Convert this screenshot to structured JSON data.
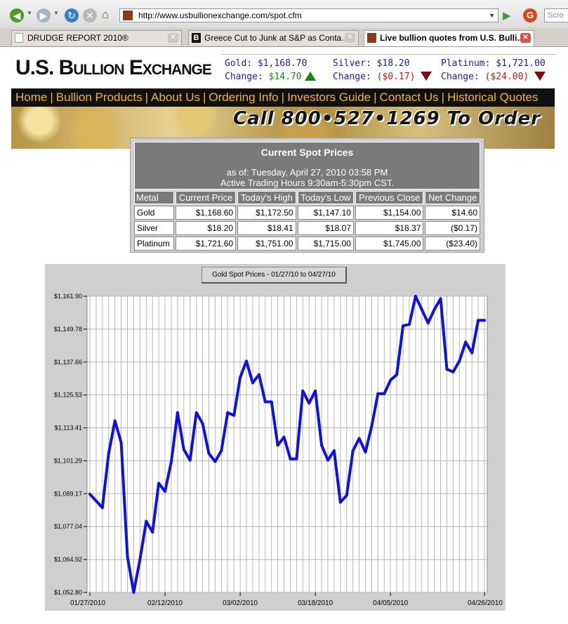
{
  "browser": {
    "url": "http://www.usbullionexchange.com/spot.cfm",
    "search_placeholder": "Scro",
    "tabs": [
      {
        "label": "DRUDGE REPORT 2010®",
        "active": false
      },
      {
        "label": "Greece Cut to Junk at S&P as Conta...",
        "active": false
      },
      {
        "label": "Live bullion quotes from U.S. Bulli...",
        "active": true
      }
    ]
  },
  "site": {
    "logo": "U.S. Bullion Exchange",
    "ticker": {
      "gold_label": "Gold:",
      "gold_price": "$1,168.70",
      "gold_change_label": "Change:",
      "gold_change": "$14.70",
      "silver_label": "Silver:",
      "silver_price": "$18.20",
      "silver_change_label": "Change:",
      "silver_change": "($0.17)",
      "platinum_label": "Platinum:",
      "platinum_price": "$1,721.00",
      "platinum_change_label": "Change:",
      "platinum_change": "($24.00)"
    },
    "nav": [
      "Home",
      "Bullion Products",
      "About Us",
      "Ordering Info",
      "Investors Guide",
      "Contact Us",
      "Historical Quotes"
    ],
    "banner_text": "Call 800•527•1269 To Order"
  },
  "spot": {
    "title": "Current Spot Prices",
    "as_of": "as of: Tuesday, April 27, 2010 03:58 PM",
    "hours": "Active Trading Hours 9:30am-5:30pm CST.",
    "columns": [
      "Metal",
      "Current Price",
      "Today's High",
      "Today's Low",
      "Previous Close",
      "Net Change"
    ],
    "rows": [
      [
        "Gold",
        "$1,168.60",
        "$1,172.50",
        "$1,147.10",
        "$1,154.00",
        "$14.60"
      ],
      [
        "Silver",
        "$18.20",
        "$18.41",
        "$18.07",
        "$18.37",
        "($0.17)"
      ],
      [
        "Platinum",
        "$1,721.60",
        "$1,751.00",
        "$1,715.00",
        "$1,745.00",
        "($23.40)"
      ]
    ]
  },
  "chart_data": {
    "type": "line",
    "title": "Gold Spot Prices - 01/27/10 to 04/27/10",
    "xlabel": "",
    "ylabel": "",
    "ylim": [
      1052.8,
      1161.9
    ],
    "yticks": [
      "$1,161.90",
      "$1,149.78",
      "$1,137.66",
      "$1,125.53",
      "$1,113.41",
      "$1,101.29",
      "$1,089.17",
      "$1,077.04",
      "$1,064.92",
      "$1,052.80"
    ],
    "xticks": [
      {
        "label": "01/27/2010",
        "index": 0
      },
      {
        "label": "02/12/2010",
        "index": 12
      },
      {
        "label": "03/02/2010",
        "index": 24
      },
      {
        "label": "03/18/2010",
        "index": 36
      },
      {
        "label": "04/05/2010",
        "index": 48
      },
      {
        "label": "04/26/2010",
        "index": 63
      }
    ],
    "grid": true,
    "color": "#1010e0",
    "series": [
      {
        "values": [
          1089.0,
          1086.5,
          1084.0,
          1104.0,
          1116.0,
          1108.0,
          1066.0,
          1052.8,
          1065.0,
          1079.0,
          1075.0,
          1093.0,
          1090.0,
          1101.0,
          1119.0,
          1105.5,
          1101.5,
          1119.0,
          1115.0,
          1104.0,
          1101.0,
          1105.0,
          1119.0,
          1118.0,
          1132.0,
          1138.0,
          1130.0,
          1133.0,
          1123.0,
          1123.0,
          1107.0,
          1110.0,
          1102.0,
          1102.0,
          1127.0,
          1122.5,
          1127.0,
          1107.0,
          1101.5,
          1105.0,
          1086.0,
          1088.5,
          1105.0,
          1109.5,
          1104.5,
          1114.0,
          1126.0,
          1126.0,
          1131.0,
          1133.0,
          1151.0,
          1151.5,
          1161.9,
          1157.0,
          1152.0,
          1157.0,
          1161.0,
          1135.0,
          1134.0,
          1138.0,
          1145.0,
          1141.0,
          1153.0,
          1153.0
        ]
      }
    ]
  }
}
